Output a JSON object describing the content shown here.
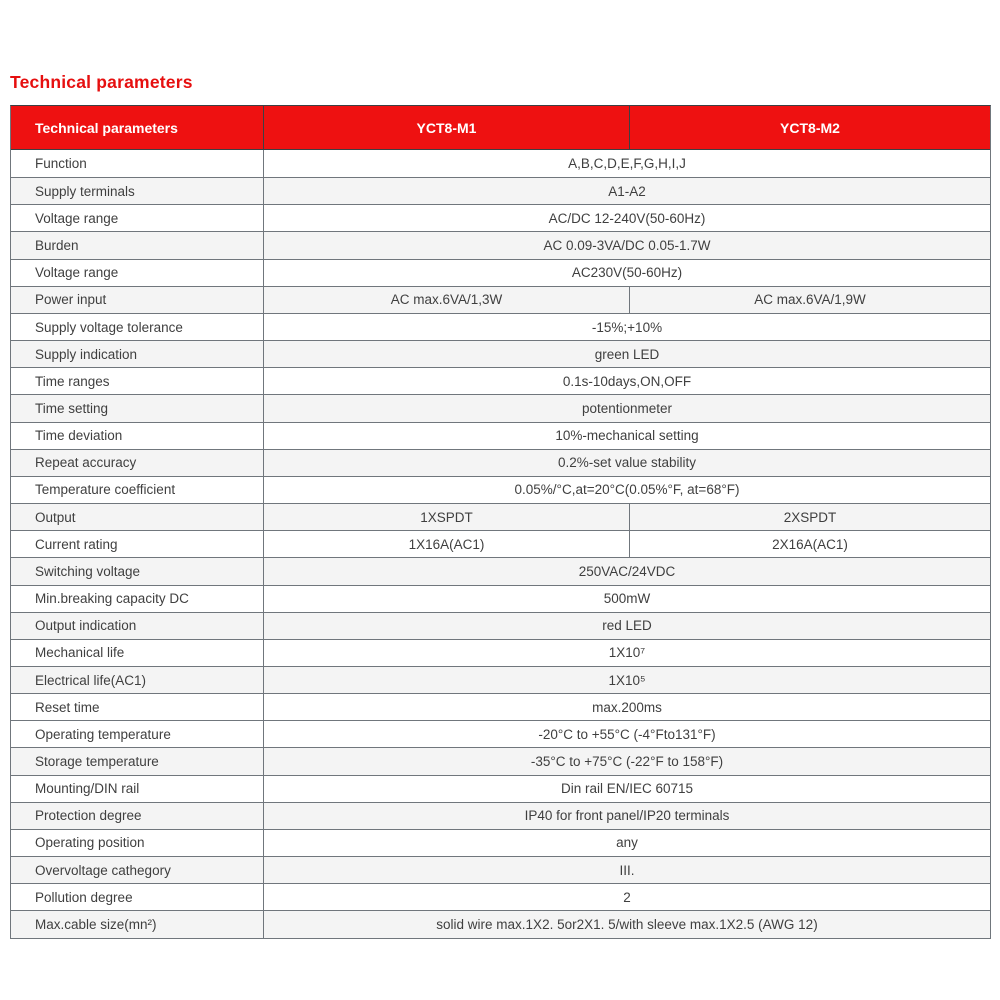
{
  "page": {
    "title": "Technical parameters"
  },
  "colors": {
    "header_bg": "#ee1111",
    "title": "#e60f0f",
    "shaded_row": "#f4f4f4",
    "border": "#70767c",
    "text": "#3f3f3f"
  },
  "table": {
    "header": {
      "col_label": "Technical parameters",
      "col_m1": "YCT8-M1",
      "col_m2": "YCT8-M2"
    },
    "rows": [
      {
        "label": "Function",
        "value": "A,B,C,D,E,F,G,H,I,J",
        "shaded": false
      },
      {
        "label": "Supply terminals",
        "value": "A1-A2",
        "shaded": true
      },
      {
        "label": "Voltage range",
        "value": "AC/DC 12-240V(50-60Hz)",
        "shaded": false
      },
      {
        "label": "Burden",
        "value": "AC 0.09-3VA/DC 0.05-1.7W",
        "shaded": true
      },
      {
        "label": "Voltage range",
        "value": "AC230V(50-60Hz)",
        "shaded": false
      },
      {
        "label": "Power input",
        "split": true,
        "value_m1": "AC max.6VA/1,3W",
        "value_m2": "AC max.6VA/1,9W",
        "shaded": true
      },
      {
        "label": "Supply voltage tolerance",
        "value": "-15%;+10%",
        "shaded": false
      },
      {
        "label": "Supply indication",
        "value": "green LED",
        "shaded": true
      },
      {
        "label": "Time ranges",
        "value": "0.1s-10days,ON,OFF",
        "shaded": false
      },
      {
        "label": "Time setting",
        "value": "potentionmeter",
        "shaded": true
      },
      {
        "label": "Time deviation",
        "value": "10%-mechanical setting",
        "shaded": false
      },
      {
        "label": "Repeat accuracy",
        "value": "0.2%-set value stability",
        "shaded": true
      },
      {
        "label": "Temperature coefficient",
        "value": "0.05%/°C,at=20°C(0.05%°F, at=68°F)",
        "shaded": false
      },
      {
        "label": "Output",
        "split": true,
        "value_m1": "1XSPDT",
        "value_m2": "2XSPDT",
        "shaded": true
      },
      {
        "label": "Current rating",
        "split": true,
        "value_m1": "1X16A(AC1)",
        "value_m2": "2X16A(AC1)",
        "shaded": false
      },
      {
        "label": "Switching voltage",
        "value": "250VAC/24VDC",
        "shaded": true
      },
      {
        "label": "Min.breaking capacity DC",
        "value": "500mW",
        "shaded": false
      },
      {
        "label": "Output indication",
        "value": "red LED",
        "shaded": true
      },
      {
        "label": "Mechanical life",
        "value": "1X10⁷",
        "shaded": false
      },
      {
        "label": "Electrical life(AC1)",
        "value": "1X10⁵",
        "shaded": true
      },
      {
        "label": "Reset time",
        "value": "max.200ms",
        "shaded": false
      },
      {
        "label": "Operating temperature",
        "value": "-20°C to +55°C (-4°Fto131°F)",
        "shaded": false
      },
      {
        "label": "Storage temperature",
        "value": "-35°C to +75°C (-22°F to 158°F)",
        "shaded": true
      },
      {
        "label": "Mounting/DIN rail",
        "value": "Din rail EN/IEC 60715",
        "shaded": false
      },
      {
        "label": "Protection degree",
        "value": "IP40 for front panel/IP20 terminals",
        "shaded": true
      },
      {
        "label": "Operating position",
        "value": "any",
        "shaded": false
      },
      {
        "label": "Overvoltage cathegory",
        "value": "III.",
        "shaded": true
      },
      {
        "label": "Pollution degree",
        "value": "2",
        "shaded": false
      },
      {
        "label": "Max.cable size(mn²)",
        "value": "solid wire max.1X2. 5or2X1. 5/with sleeve max.1X2.5 (AWG 12)",
        "shaded": true
      }
    ]
  }
}
